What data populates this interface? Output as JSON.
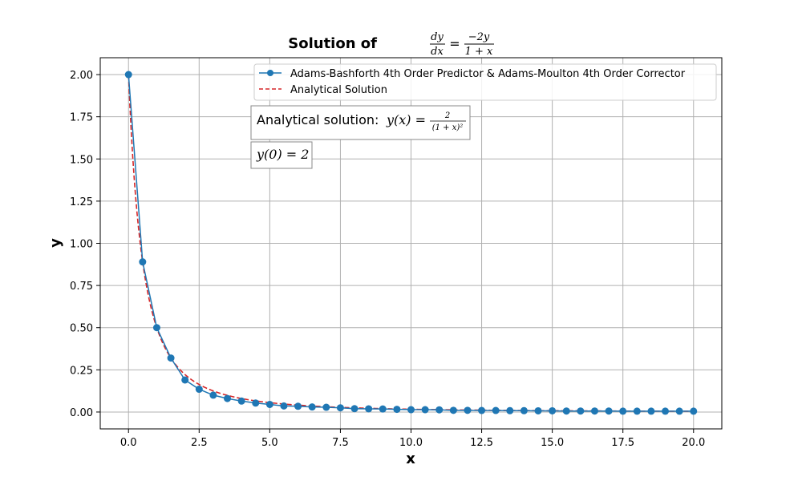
{
  "chart_data": {
    "type": "line",
    "title": {
      "prefix": "Solution of",
      "frac_num": "dy",
      "frac_den": "dx",
      "eq": "=",
      "rhs_num": "−2y",
      "rhs_den": "1 + x"
    },
    "xlabel": "x",
    "ylabel": "y",
    "xlim": [
      -1.0,
      21.0
    ],
    "ylim": [
      -0.1,
      2.1
    ],
    "xticks": [
      0,
      2.5,
      5,
      7.5,
      10,
      12.5,
      15,
      17.5,
      20
    ],
    "xtick_labels": [
      "0.0",
      "2.5",
      "5.0",
      "7.5",
      "10.0",
      "12.5",
      "15.0",
      "17.5",
      "20.0"
    ],
    "yticks": [
      0,
      0.25,
      0.5,
      0.75,
      1.0,
      1.25,
      1.5,
      1.75,
      2.0
    ],
    "ytick_labels": [
      "0.00",
      "0.25",
      "0.50",
      "0.75",
      "1.00",
      "1.25",
      "1.50",
      "1.75",
      "2.00"
    ],
    "grid": true,
    "legend_position": "top-right",
    "series": [
      {
        "name": "Adams-Bashforth 4th Order Predictor & Adams-Moulton 4th Order Corrector",
        "style": "solid-with-markers",
        "color": "#1f77b4",
        "x": [
          0,
          0.5,
          1,
          1.5,
          2,
          2.5,
          3,
          3.5,
          4,
          4.5,
          5,
          5.5,
          6,
          6.5,
          7,
          7.5,
          8,
          8.5,
          9,
          9.5,
          10,
          10.5,
          11,
          11.5,
          12,
          12.5,
          13,
          13.5,
          14,
          14.5,
          15,
          15.5,
          16,
          16.5,
          17,
          17.5,
          18,
          18.5,
          19,
          19.5,
          20
        ],
        "y": [
          2.0,
          0.89,
          0.5,
          0.32,
          0.19,
          0.135,
          0.1,
          0.08,
          0.065,
          0.053,
          0.045,
          0.036,
          0.034,
          0.03,
          0.028,
          0.025,
          0.02,
          0.019,
          0.018,
          0.016,
          0.014,
          0.014,
          0.013,
          0.01,
          0.01,
          0.009,
          0.009,
          0.008,
          0.008,
          0.007,
          0.007,
          0.006,
          0.006,
          0.006,
          0.006,
          0.005,
          0.005,
          0.005,
          0.005,
          0.005,
          0.005
        ]
      },
      {
        "name": "Analytical Solution",
        "style": "dashed",
        "color": "#d62728",
        "function": "2/(1+x)^2",
        "x_range": [
          0,
          20
        ]
      }
    ],
    "annotations": [
      {
        "text_prefix": "Analytical solution: ",
        "math_lhs": "y(x) =",
        "frac_num": "2",
        "frac_den": "(1 + x)²"
      },
      {
        "math": "y(0) = 2"
      }
    ]
  }
}
